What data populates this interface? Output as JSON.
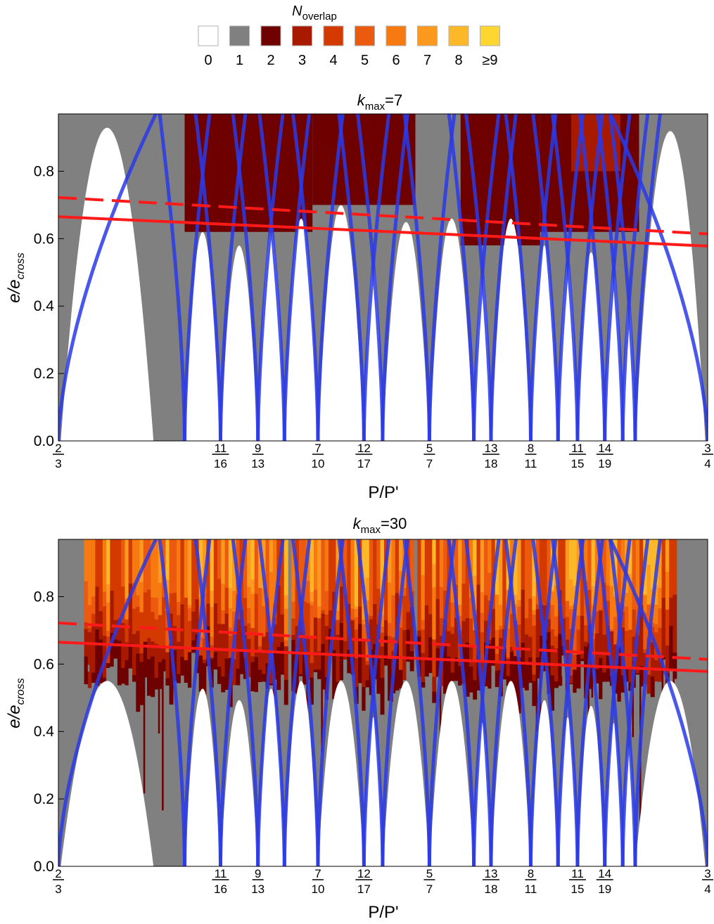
{
  "legend": {
    "title_main": "N",
    "title_sub": "overlap",
    "entries": [
      {
        "label": "0",
        "color": "#ffffff"
      },
      {
        "label": "1",
        "color": "#808080"
      },
      {
        "label": "2",
        "color": "#6e0000"
      },
      {
        "label": "3",
        "color": "#a81a00"
      },
      {
        "label": "4",
        "color": "#d43a00"
      },
      {
        "label": "5",
        "color": "#ec5a10"
      },
      {
        "label": "6",
        "color": "#f77a10"
      },
      {
        "label": "7",
        "color": "#fb9a1e"
      },
      {
        "label": "8",
        "color": "#fdb82a"
      },
      {
        "label": "≥9",
        "color": "#fed630"
      }
    ]
  },
  "chart_data": [
    {
      "type": "heatmap",
      "title_main": "k",
      "title_sub": "max",
      "title_rest": "=7",
      "ylabel_main": "e/e",
      "ylabel_sub": "cross",
      "xlabel": "P/P'",
      "xlim": [
        0.6667,
        0.75
      ],
      "ylim": [
        0,
        0.97
      ],
      "yticks": [
        "0.0",
        "0.2",
        "0.4",
        "0.6",
        "0.8"
      ],
      "yticks_values": [
        0,
        0.2,
        0.4,
        0.6,
        0.8
      ],
      "xtick_fractions": [
        {
          "num": "2",
          "den": "3"
        },
        {
          "num": "11",
          "den": "16"
        },
        {
          "num": "9",
          "den": "13"
        },
        {
          "num": "7",
          "den": "10"
        },
        {
          "num": "12",
          "den": "17"
        },
        {
          "num": "5",
          "den": "7"
        },
        {
          "num": "13",
          "den": "18"
        },
        {
          "num": "8",
          "den": "11"
        },
        {
          "num": "11",
          "den": "15"
        },
        {
          "num": "14",
          "den": "19"
        },
        {
          "num": "3",
          "den": "4"
        }
      ],
      "resonance_centers": [
        0.6667,
        0.6829,
        0.6875,
        0.6923,
        0.6957,
        0.7,
        0.7059,
        0.7083,
        0.7143,
        0.72,
        0.7222,
        0.7273,
        0.7308,
        0.7333,
        0.7368,
        0.7391,
        0.7407,
        0.75
      ],
      "solid_line": {
        "start": [
          0.6667,
          0.665
        ],
        "end": [
          0.75,
          0.578
        ],
        "color": "#ff1a1a"
      },
      "dashed_line": {
        "start": [
          0.6667,
          0.722
        ],
        "end": [
          0.75,
          0.614
        ],
        "color": "#ff1a1a"
      },
      "resonance_color": "#2a3ae8"
    },
    {
      "type": "heatmap",
      "title_main": "k",
      "title_sub": "max",
      "title_rest": "=30",
      "ylabel_main": "e/e",
      "ylabel_sub": "cross",
      "xlabel": "P/P'",
      "xlim": [
        0.6667,
        0.75
      ],
      "ylim": [
        0,
        0.97
      ],
      "yticks": [
        "0.0",
        "0.2",
        "0.4",
        "0.6",
        "0.8"
      ],
      "yticks_values": [
        0,
        0.2,
        0.4,
        0.6,
        0.8
      ],
      "xtick_fractions": [
        {
          "num": "2",
          "den": "3"
        },
        {
          "num": "11",
          "den": "16"
        },
        {
          "num": "9",
          "den": "13"
        },
        {
          "num": "7",
          "den": "10"
        },
        {
          "num": "12",
          "den": "17"
        },
        {
          "num": "5",
          "den": "7"
        },
        {
          "num": "13",
          "den": "18"
        },
        {
          "num": "8",
          "den": "11"
        },
        {
          "num": "11",
          "den": "15"
        },
        {
          "num": "14",
          "den": "19"
        },
        {
          "num": "3",
          "den": "4"
        }
      ],
      "resonance_centers": [
        0.6667,
        0.6829,
        0.6875,
        0.6923,
        0.6957,
        0.7,
        0.7059,
        0.7083,
        0.7143,
        0.72,
        0.7222,
        0.7273,
        0.7308,
        0.7333,
        0.7368,
        0.7391,
        0.7407,
        0.75
      ],
      "solid_line": {
        "start": [
          0.6667,
          0.665
        ],
        "end": [
          0.75,
          0.578
        ],
        "color": "#ff1a1a"
      },
      "dashed_line": {
        "start": [
          0.6667,
          0.722
        ],
        "end": [
          0.75,
          0.614
        ],
        "color": "#ff1a1a"
      },
      "resonance_color": "#2a3ae8"
    }
  ]
}
